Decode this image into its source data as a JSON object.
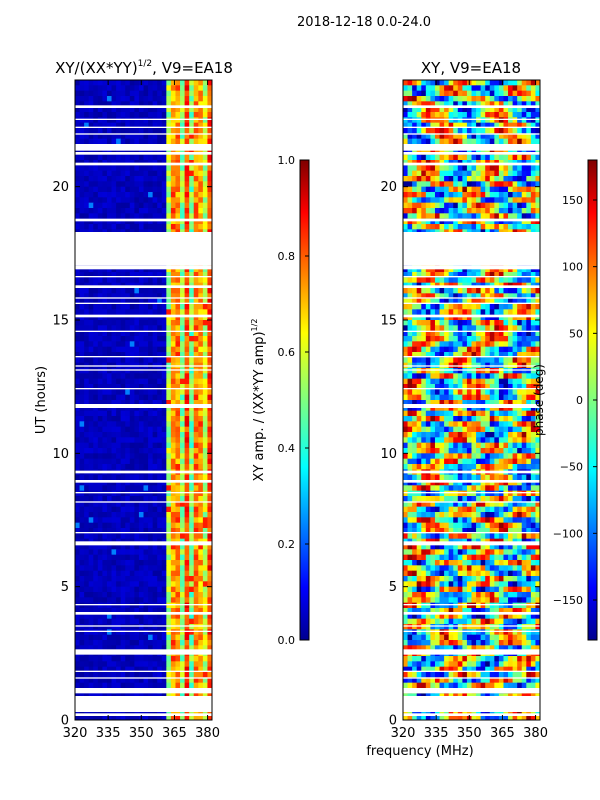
{
  "figure": {
    "suptitle": "2018-12-18 0.0-24.0",
    "xlabel_shared": "frequency (MHz)"
  },
  "chart_data": [
    {
      "type": "heatmap",
      "panel": "amplitude",
      "title": "XY/(XX*YY)^1/2, V9=EA18",
      "title_main": "XY/(XX*YY)",
      "title_sup": "1/2",
      "title_rest": ", V9=EA18",
      "ylabel": "UT (hours)",
      "xlim": [
        320,
        382
      ],
      "ylim": [
        0,
        24
      ],
      "xticks": [
        320,
        335,
        350,
        365,
        380
      ],
      "yticks": [
        0,
        5,
        10,
        15,
        20
      ],
      "colorbar": {
        "label": "XY amp. / (XX*YY amp)^1/2",
        "label_main": "XY amp. / (XX*YY amp)",
        "label_sup": "1/2",
        "range": [
          0.0,
          1.0
        ],
        "ticks": [
          "0.0",
          "0.2",
          "0.4",
          "0.6",
          "0.8",
          "1.0"
        ],
        "colormap": "jet"
      },
      "description": "Mostly low amplitude (~0.05) below 362 MHz; bright striped channels between ~363 and 380 MHz with values 0.5-0.9."
    },
    {
      "type": "heatmap",
      "panel": "phase",
      "title": "XY, V9=EA18",
      "ylabel": "",
      "xlim": [
        320,
        382
      ],
      "ylim": [
        0,
        24
      ],
      "xticks": [
        320,
        335,
        350,
        365,
        380
      ],
      "yticks": [
        0,
        5,
        10,
        15,
        20
      ],
      "colorbar": {
        "label": "phase (deg)",
        "range": [
          -180,
          180
        ],
        "ticks": [
          "−150",
          "−100",
          "−50",
          "0",
          "50",
          "100",
          "150"
        ],
        "colormap": "jet"
      },
      "description": "Phase varies across full -180 to 180 degree range with noisy banded structure."
    }
  ],
  "flagged_gaps_hours": [
    [
      0.15,
      0.25
    ],
    [
      0.3,
      0.9
    ],
    [
      1.0,
      1.2
    ],
    [
      1.55,
      1.6
    ],
    [
      1.8,
      1.85
    ],
    [
      2.45,
      2.65
    ],
    [
      3.3,
      3.35
    ],
    [
      3.5,
      3.55
    ],
    [
      3.95,
      4.05
    ],
    [
      4.3,
      4.35
    ],
    [
      6.55,
      6.7
    ],
    [
      7.0,
      7.05
    ],
    [
      8.15,
      8.2
    ],
    [
      8.5,
      8.55
    ],
    [
      8.9,
      9.0
    ],
    [
      9.25,
      9.35
    ],
    [
      11.7,
      11.85
    ],
    [
      12.4,
      12.45
    ],
    [
      13.1,
      13.15
    ],
    [
      13.25,
      13.3
    ],
    [
      13.6,
      13.65
    ],
    [
      14.55,
      14.6
    ],
    [
      15.1,
      15.2
    ],
    [
      15.6,
      15.65
    ],
    [
      15.8,
      15.85
    ],
    [
      16.2,
      16.3
    ],
    [
      16.6,
      16.65
    ],
    [
      16.9,
      17.05
    ],
    [
      17.05,
      18.3
    ],
    [
      18.7,
      18.8
    ],
    [
      20.8,
      20.9
    ],
    [
      21.2,
      21.3
    ],
    [
      21.35,
      21.6
    ],
    [
      21.95,
      22.0
    ],
    [
      22.2,
      22.25
    ],
    [
      22.5,
      22.55
    ],
    [
      22.95,
      23.05
    ]
  ]
}
